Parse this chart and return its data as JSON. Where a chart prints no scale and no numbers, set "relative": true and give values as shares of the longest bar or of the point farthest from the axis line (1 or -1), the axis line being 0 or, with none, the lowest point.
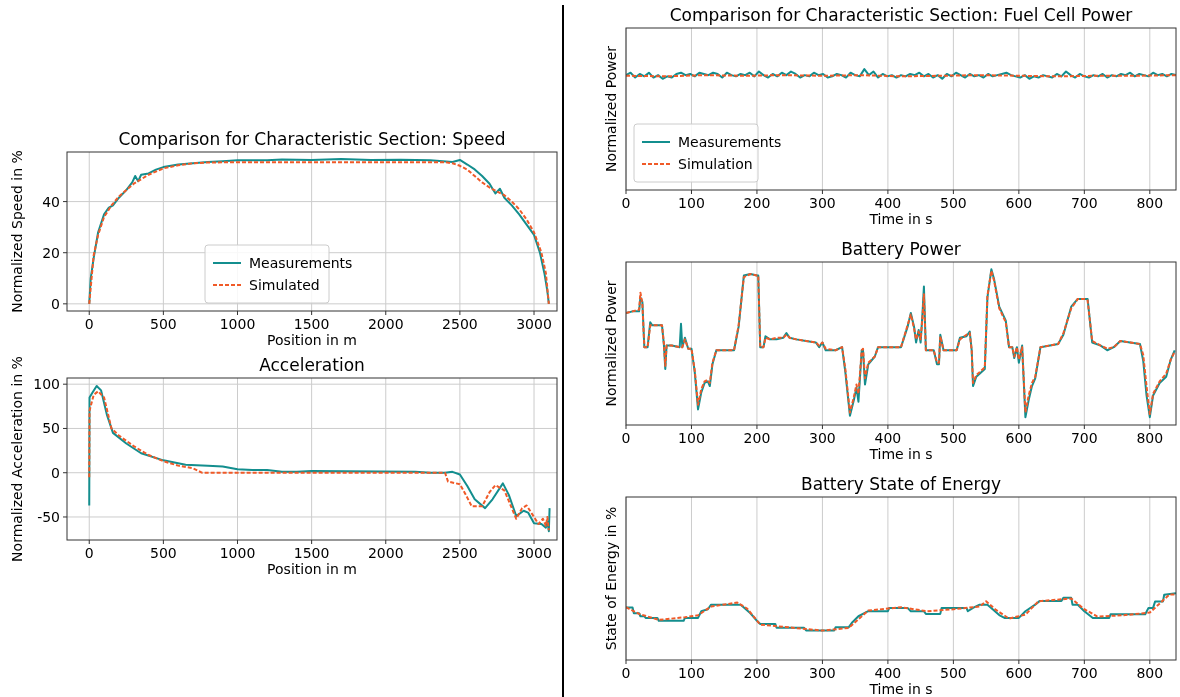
{
  "chart_data": [
    {
      "type": "line",
      "title": "Comparison for Characteristic Section: Speed",
      "xlabel": "Position in m",
      "ylabel": "Normalized Speed in %",
      "xlim": [
        -150,
        3155
      ],
      "xticks": [
        0,
        500,
        1000,
        1500,
        2000,
        2500,
        3000
      ],
      "ylim": [
        -2.8,
        59.4
      ],
      "yticks": [
        0,
        20,
        40
      ],
      "grid": true,
      "legend": "bottom",
      "series": [
        {
          "name": "Measurements",
          "color": "#138e8e",
          "line_style": "solid",
          "x": [
            0,
            10,
            30,
            60,
            100,
            130,
            160,
            200,
            250,
            290,
            310,
            330,
            350,
            400,
            450,
            500,
            600,
            700,
            800,
            900,
            1000,
            1200,
            1300,
            1500,
            1700,
            1900,
            2100,
            2300,
            2450,
            2500,
            2550,
            2600,
            2650,
            2700,
            2720,
            2740,
            2770,
            2800,
            2850,
            2900,
            2950,
            3000,
            3040,
            3070,
            3090,
            3100
          ],
          "values": [
            0,
            10,
            18,
            28,
            35,
            37.5,
            38.5,
            41.5,
            44.5,
            47.5,
            50,
            48,
            50.5,
            51,
            52.5,
            53.5,
            54.5,
            55,
            55.5,
            55.8,
            56.2,
            56.2,
            56.5,
            56.3,
            56.7,
            56.3,
            56.4,
            56.2,
            55.5,
            56.3,
            54.5,
            52.6,
            50,
            47,
            45,
            43.2,
            45,
            41.5,
            38.5,
            35,
            31,
            27,
            20,
            12,
            5,
            0
          ]
        },
        {
          "name": "Simulated",
          "color": "#f05a28",
          "line_style": "dashed",
          "x": [
            0,
            30,
            60,
            100,
            150,
            200,
            300,
            400,
            500,
            600,
            700,
            800,
            1000,
            2400,
            2450,
            2500,
            2550,
            2600,
            2650,
            2700,
            2750,
            2800,
            2850,
            2900,
            2950,
            3000,
            3050,
            3080,
            3100
          ],
          "values": [
            0,
            19,
            27,
            34,
            38.5,
            42,
            47,
            50.5,
            53,
            54.2,
            55,
            55.3,
            55.4,
            55.4,
            55,
            54,
            52.5,
            50,
            47.5,
            45.5,
            44,
            42.5,
            40,
            37,
            33,
            28,
            20,
            12,
            0
          ]
        }
      ]
    },
    {
      "type": "line",
      "title": "Acceleration",
      "xlabel": "Position in m",
      "ylabel": "Normalized Acceleration in %",
      "xlim": [
        -150,
        3155
      ],
      "xticks": [
        0,
        500,
        1000,
        1500,
        2000,
        2500,
        3000
      ],
      "ylim": [
        -76,
        107
      ],
      "yticks": [
        -50,
        0,
        50,
        100
      ],
      "grid": true,
      "series": [
        {
          "color": "#138e8e",
          "line_style": "solid",
          "x": [
            0,
            2,
            20,
            50,
            80,
            120,
            160,
            250,
            350,
            500,
            650,
            800,
            900,
            1000,
            1100,
            1200,
            1300,
            1400,
            1500,
            2200,
            2300,
            2400,
            2450,
            2500,
            2550,
            2600,
            2670,
            2720,
            2790,
            2830,
            2880,
            2930,
            2960,
            3000,
            3050,
            3080,
            3090,
            3100,
            3105
          ],
          "values": [
            -37,
            85,
            90,
            98,
            93,
            65,
            45,
            33,
            22,
            14,
            9,
            8,
            7,
            4,
            3,
            3,
            1,
            1,
            2,
            1,
            0,
            0,
            1,
            -2,
            -15,
            -30,
            -40,
            -30,
            -12,
            -25,
            -49,
            -43,
            -45,
            -57,
            -58,
            -62,
            -55,
            -66,
            -40
          ]
        },
        {
          "color": "#f05a28",
          "line_style": "dashed",
          "x": [
            0,
            2,
            30,
            60,
            100,
            150,
            200,
            300,
            400,
            500,
            600,
            700,
            760,
            2400,
            2420,
            2500,
            2540,
            2580,
            2650,
            2700,
            2740,
            2800,
            2850,
            2880,
            2920,
            2950,
            3000,
            3030,
            3060,
            3080,
            3090,
            3100
          ],
          "values": [
            -5,
            70,
            88,
            92,
            85,
            50,
            42,
            30,
            20,
            13,
            8,
            5,
            0,
            0,
            -10,
            -13,
            -25,
            -38,
            -38,
            -22,
            -14,
            -20,
            -40,
            -52,
            -40,
            -37,
            -50,
            -58,
            -52,
            -60,
            -50,
            -65
          ]
        }
      ]
    },
    {
      "type": "line",
      "title": "Comparison for Characteristic Section: Fuel Cell Power",
      "xlabel": "Time in s",
      "ylabel": "Normalized Power",
      "relative": true,
      "xlim": [
        0,
        840
      ],
      "xticks": [
        0,
        100,
        200,
        300,
        400,
        500,
        600,
        700,
        800
      ],
      "grid": "x",
      "tick_labels": "x",
      "legend": "bottom left",
      "series": [
        {
          "name": "Measurements",
          "color": "#138e8e",
          "line_style": "solid",
          "x": [
            0,
            7,
            14,
            21,
            28,
            35,
            42,
            49,
            56,
            63,
            70,
            77,
            84,
            91,
            98,
            105,
            112,
            119,
            126,
            133,
            140,
            147,
            154,
            161,
            168,
            175,
            182,
            189,
            196,
            203,
            210,
            217,
            224,
            231,
            238,
            245,
            252,
            259,
            266,
            273,
            280,
            287,
            294,
            301,
            308,
            315,
            322,
            329,
            336,
            343,
            350,
            357,
            364,
            371,
            378,
            385,
            392,
            399,
            406,
            413,
            420,
            427,
            434,
            441,
            448,
            455,
            462,
            469,
            476,
            483,
            490,
            497,
            504,
            511,
            518,
            525,
            532,
            539,
            546,
            553,
            560,
            567,
            574,
            581,
            588,
            595,
            602,
            609,
            616,
            623,
            630,
            637,
            644,
            651,
            658,
            665,
            672,
            679,
            686,
            693,
            700,
            707,
            714,
            721,
            728,
            735,
            742,
            749,
            756,
            763,
            770,
            777,
            784,
            791,
            798,
            805,
            812,
            819,
            826,
            833,
            840
          ],
          "values": [
            0.95,
            0.97,
            0.93,
            0.96,
            0.94,
            0.97,
            0.93,
            0.95,
            0.92,
            0.94,
            0.93,
            0.96,
            0.97,
            0.95,
            0.96,
            0.94,
            0.97,
            0.96,
            0.95,
            0.97,
            0.96,
            0.93,
            0.97,
            0.95,
            0.94,
            0.96,
            0.95,
            0.97,
            0.94,
            0.98,
            0.95,
            0.93,
            0.96,
            0.94,
            0.97,
            0.95,
            0.98,
            0.96,
            0.93,
            0.95,
            0.94,
            0.97,
            0.95,
            0.96,
            0.93,
            0.94,
            0.96,
            0.95,
            0.93,
            0.97,
            0.95,
            0.94,
            1.0,
            0.95,
            0.98,
            0.93,
            0.96,
            0.94,
            0.95,
            0.93,
            0.95,
            0.94,
            0.96,
            0.95,
            0.97,
            0.94,
            0.96,
            0.93,
            0.95,
            0.92,
            0.96,
            0.94,
            0.97,
            0.95,
            0.93,
            0.96,
            0.94,
            0.95,
            0.93,
            0.96,
            0.94,
            0.95,
            0.96,
            0.97,
            0.95,
            0.94,
            0.93,
            0.95,
            0.92,
            0.94,
            0.93,
            0.95,
            0.94,
            0.93,
            0.96,
            0.94,
            0.98,
            0.95,
            0.93,
            0.96,
            0.94,
            0.93,
            0.95,
            0.94,
            0.96,
            0.93,
            0.95,
            0.94,
            0.96,
            0.95,
            0.97,
            0.94,
            0.96,
            0.95,
            0.94,
            0.97,
            0.95,
            0.96,
            0.94,
            0.96,
            0.95
          ]
        },
        {
          "name": "Simulation",
          "color": "#f05a28",
          "line_style": "dashed",
          "x": [
            0,
            60,
            120,
            180,
            240,
            300,
            360,
            420,
            480,
            540,
            600,
            660,
            720,
            780,
            840
          ],
          "values": [
            0.945,
            0.94,
            0.95,
            0.945,
            0.95,
            0.945,
            0.95,
            0.94,
            0.945,
            0.95,
            0.945,
            0.94,
            0.945,
            0.945,
            0.95
          ]
        }
      ]
    },
    {
      "type": "line",
      "title": "Battery Power",
      "xlabel": "Time in s",
      "ylabel": "Normalized Power",
      "relative": true,
      "xlim": [
        0,
        840
      ],
      "xticks": [
        0,
        100,
        200,
        300,
        400,
        500,
        600,
        700,
        800
      ],
      "grid": "x",
      "tick_labels": "x",
      "series": [
        {
          "color": "#138e8e",
          "line_style": "solid",
          "x": [
            0,
            10,
            20,
            22,
            25,
            28,
            33,
            37,
            40,
            55,
            58,
            60,
            62,
            70,
            82,
            84,
            86,
            90,
            95,
            100,
            105,
            110,
            115,
            120,
            125,
            128,
            132,
            138,
            165,
            172,
            180,
            190,
            200,
            202,
            205,
            210,
            213,
            220,
            230,
            240,
            245,
            250,
            260,
            275,
            290,
            295,
            300,
            305,
            320,
            330,
            335,
            342,
            348,
            352,
            355,
            360,
            362,
            365,
            370,
            380,
            385,
            420,
            430,
            435,
            440,
            443,
            447,
            450,
            453,
            455,
            458,
            470,
            475,
            478,
            480,
            485,
            505,
            510,
            520,
            525,
            528,
            530,
            535,
            548,
            552,
            558,
            562,
            570,
            580,
            585,
            590,
            593,
            597,
            600,
            605,
            610,
            615,
            620,
            625,
            633,
            660,
            668,
            680,
            690,
            700,
            705,
            712,
            725,
            735,
            745,
            755,
            770,
            785,
            790,
            795,
            800,
            805,
            815,
            825,
            832,
            838
          ],
          "values": [
            0.72,
            0.73,
            0.73,
            0.82,
            0.79,
            0.5,
            0.5,
            0.66,
            0.64,
            0.64,
            0.51,
            0.36,
            0.51,
            0.51,
            0.5,
            0.65,
            0.5,
            0.56,
            0.49,
            0.49,
            0.34,
            0.1,
            0.21,
            0.27,
            0.28,
            0.25,
            0.39,
            0.48,
            0.48,
            0.63,
            0.96,
            0.97,
            0.96,
            0.96,
            0.5,
            0.5,
            0.57,
            0.55,
            0.55,
            0.56,
            0.59,
            0.56,
            0.55,
            0.54,
            0.53,
            0.5,
            0.53,
            0.48,
            0.48,
            0.5,
            0.34,
            0.06,
            0.16,
            0.24,
            0.15,
            0.48,
            0.48,
            0.26,
            0.39,
            0.44,
            0.5,
            0.5,
            0.63,
            0.72,
            0.63,
            0.53,
            0.61,
            0.53,
            0.73,
            0.89,
            0.48,
            0.48,
            0.39,
            0.39,
            0.58,
            0.48,
            0.48,
            0.56,
            0.57,
            0.6,
            0.48,
            0.25,
            0.31,
            0.36,
            0.82,
            1.0,
            0.94,
            0.76,
            0.67,
            0.5,
            0.5,
            0.43,
            0.5,
            0.4,
            0.51,
            0.05,
            0.16,
            0.25,
            0.3,
            0.5,
            0.52,
            0.58,
            0.76,
            0.81,
            0.81,
            0.81,
            0.53,
            0.51,
            0.48,
            0.5,
            0.54,
            0.53,
            0.52,
            0.41,
            0.19,
            0.05,
            0.19,
            0.27,
            0.31,
            0.42,
            0.48
          ]
        },
        {
          "color": "#f05a28",
          "line_style": "dashed",
          "x": [
            0,
            10,
            20,
            22,
            25,
            28,
            33,
            37,
            40,
            55,
            58,
            60,
            62,
            70,
            82,
            86,
            90,
            95,
            100,
            105,
            110,
            115,
            120,
            125,
            128,
            132,
            138,
            165,
            172,
            180,
            190,
            200,
            202,
            205,
            210,
            213,
            220,
            230,
            240,
            245,
            250,
            260,
            275,
            290,
            295,
            300,
            305,
            320,
            330,
            335,
            342,
            348,
            352,
            355,
            360,
            362,
            365,
            370,
            380,
            385,
            420,
            430,
            435,
            440,
            443,
            447,
            450,
            453,
            455,
            458,
            470,
            475,
            478,
            480,
            485,
            505,
            510,
            520,
            525,
            528,
            530,
            535,
            548,
            552,
            558,
            562,
            570,
            580,
            585,
            590,
            593,
            597,
            600,
            605,
            610,
            615,
            620,
            625,
            633,
            660,
            668,
            680,
            690,
            700,
            705,
            712,
            725,
            735,
            745,
            755,
            770,
            785,
            790,
            795,
            800,
            805,
            815,
            825,
            832,
            838
          ],
          "values": [
            0.72,
            0.73,
            0.74,
            0.85,
            0.78,
            0.5,
            0.5,
            0.64,
            0.64,
            0.64,
            0.52,
            0.38,
            0.51,
            0.51,
            0.5,
            0.5,
            0.55,
            0.49,
            0.49,
            0.35,
            0.13,
            0.23,
            0.28,
            0.29,
            0.27,
            0.4,
            0.48,
            0.48,
            0.64,
            0.95,
            0.97,
            0.96,
            0.96,
            0.5,
            0.5,
            0.56,
            0.55,
            0.56,
            0.56,
            0.58,
            0.56,
            0.55,
            0.54,
            0.53,
            0.51,
            0.53,
            0.49,
            0.48,
            0.5,
            0.36,
            0.08,
            0.18,
            0.26,
            0.2,
            0.48,
            0.49,
            0.3,
            0.4,
            0.44,
            0.5,
            0.5,
            0.64,
            0.71,
            0.62,
            0.55,
            0.6,
            0.55,
            0.7,
            0.84,
            0.48,
            0.48,
            0.4,
            0.4,
            0.57,
            0.48,
            0.48,
            0.55,
            0.58,
            0.59,
            0.48,
            0.27,
            0.32,
            0.37,
            0.83,
            0.99,
            0.93,
            0.75,
            0.66,
            0.5,
            0.5,
            0.44,
            0.5,
            0.42,
            0.5,
            0.08,
            0.19,
            0.27,
            0.31,
            0.5,
            0.52,
            0.59,
            0.75,
            0.81,
            0.81,
            0.8,
            0.54,
            0.51,
            0.49,
            0.5,
            0.54,
            0.53,
            0.52,
            0.45,
            0.25,
            0.07,
            0.2,
            0.28,
            0.33,
            0.42,
            0.47
          ]
        }
      ]
    },
    {
      "type": "line",
      "title": "Battery State of Energy",
      "xlabel": "Time in s",
      "ylabel": "State of Energy in %",
      "relative": true,
      "xlim": [
        0,
        840
      ],
      "xticks": [
        0,
        100,
        200,
        300,
        400,
        500,
        600,
        700,
        800
      ],
      "grid": "x",
      "tick_labels": "x",
      "series": [
        {
          "color": "#138e8e",
          "line_style": "solid",
          "x": [
            0,
            10,
            12,
            20,
            22,
            28,
            30,
            48,
            50,
            88,
            90,
            110,
            115,
            125,
            130,
            175,
            180,
            190,
            200,
            205,
            228,
            230,
            272,
            275,
            318,
            320,
            340,
            345,
            355,
            370,
            400,
            402,
            430,
            435,
            455,
            458,
            480,
            482,
            520,
            522,
            530,
            540,
            552,
            560,
            570,
            578,
            600,
            610,
            625,
            632,
            665,
            668,
            680,
            682,
            690,
            700,
            713,
            738,
            740,
            793,
            798,
            805,
            808,
            820,
            822,
            840
          ],
          "values": [
            0.787,
            0.787,
            0.7,
            0.7,
            0.655,
            0.655,
            0.63,
            0.63,
            0.586,
            0.586,
            0.63,
            0.63,
            0.73,
            0.76,
            0.828,
            0.828,
            0.787,
            0.7,
            0.586,
            0.54,
            0.54,
            0.483,
            0.483,
            0.443,
            0.443,
            0.489,
            0.489,
            0.557,
            0.655,
            0.73,
            0.73,
            0.78,
            0.78,
            0.73,
            0.73,
            0.69,
            0.69,
            0.78,
            0.78,
            0.73,
            0.78,
            0.828,
            0.828,
            0.759,
            0.672,
            0.63,
            0.63,
            0.73,
            0.828,
            0.885,
            0.885,
            0.93,
            0.93,
            0.828,
            0.828,
            0.73,
            0.63,
            0.63,
            0.684,
            0.684,
            0.78,
            0.78,
            0.874,
            0.874,
            0.977,
            1.0
          ]
        },
        {
          "color": "#f05a28",
          "line_style": "dashed",
          "x": [
            0,
            20,
            50,
            90,
            110,
            130,
            170,
            185,
            205,
            300,
            340,
            370,
            420,
            460,
            500,
            540,
            550,
            565,
            585,
            610,
            630,
            680,
            700,
            720,
            760,
            800,
            830,
            840
          ],
          "values": [
            0.79,
            0.69,
            0.6,
            0.64,
            0.67,
            0.8,
            0.86,
            0.77,
            0.53,
            0.44,
            0.48,
            0.74,
            0.79,
            0.73,
            0.76,
            0.8,
            0.88,
            0.75,
            0.62,
            0.68,
            0.88,
            0.92,
            0.76,
            0.65,
            0.67,
            0.71,
            0.98,
            0.98
          ]
        }
      ]
    }
  ]
}
